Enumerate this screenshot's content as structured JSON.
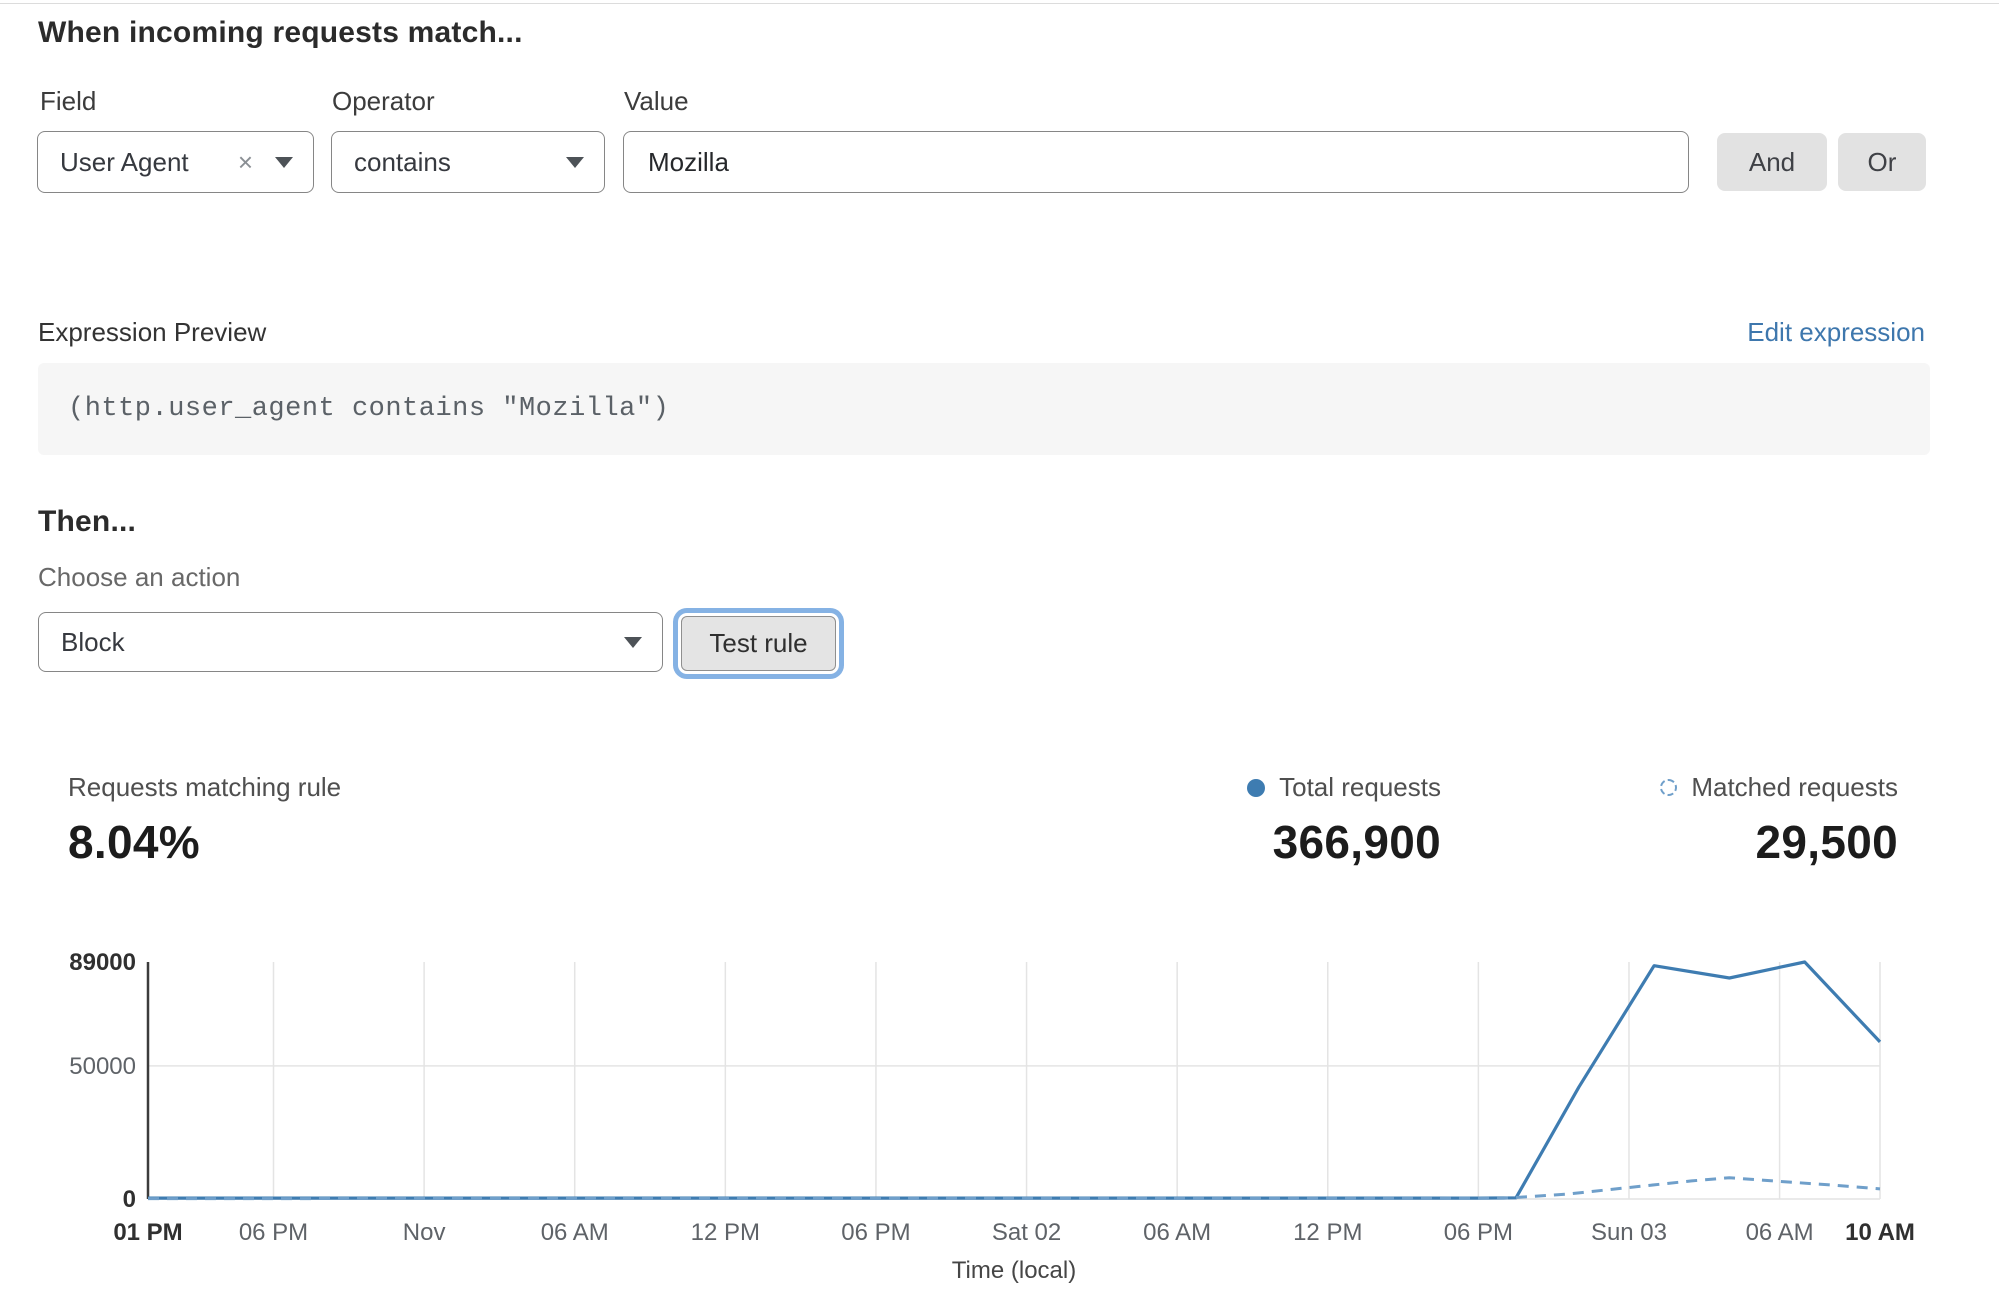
{
  "match_section": {
    "title": "When incoming requests match...",
    "field": {
      "label": "Field",
      "value": "User Agent"
    },
    "operator": {
      "label": "Operator",
      "value": "contains"
    },
    "value": {
      "label": "Value",
      "value": "Mozilla"
    },
    "and_label": "And",
    "or_label": "Or"
  },
  "expression": {
    "label": "Expression Preview",
    "edit_link": "Edit expression",
    "code": "(http.user_agent contains \"Mozilla\")"
  },
  "then_section": {
    "title": "Then...",
    "action_label": "Choose an action",
    "action_value": "Block",
    "test_button": "Test rule"
  },
  "stats": {
    "matching": {
      "label": "Requests matching rule",
      "value": "8.04%"
    },
    "total": {
      "label": "Total requests",
      "value": "366,900"
    },
    "matched": {
      "label": "Matched requests",
      "value": "29,500"
    }
  },
  "colors": {
    "solid_line": "#3e7cb1",
    "dashed_line": "#6f9fca",
    "link_blue": "#3e77ad",
    "grid": "#e4e4e4",
    "axis": "#3c3c3c"
  },
  "chart_data": {
    "type": "line",
    "title": "",
    "xlabel": "Time (local)",
    "ylabel": "",
    "ylim": [
      0,
      89000
    ],
    "grid": "on",
    "legend_position": "above-right",
    "yticks": [
      {
        "v": 0,
        "label": "0",
        "bold": true
      },
      {
        "v": 50000,
        "label": "50000",
        "bold": false
      },
      {
        "v": 89000,
        "label": "89000",
        "bold": true
      }
    ],
    "xticks": [
      {
        "h": 0,
        "label": "01 PM",
        "bold": true
      },
      {
        "h": 5,
        "label": "06 PM",
        "bold": false
      },
      {
        "h": 11,
        "label": "Nov",
        "bold": false
      },
      {
        "h": 17,
        "label": "06 AM",
        "bold": false
      },
      {
        "h": 23,
        "label": "12 PM",
        "bold": false
      },
      {
        "h": 29,
        "label": "06 PM",
        "bold": false
      },
      {
        "h": 35,
        "label": "Sat 02",
        "bold": false
      },
      {
        "h": 41,
        "label": "06 AM",
        "bold": false
      },
      {
        "h": 47,
        "label": "12 PM",
        "bold": false
      },
      {
        "h": 53,
        "label": "06 PM",
        "bold": false
      },
      {
        "h": 59,
        "label": "Sun 03",
        "bold": false
      },
      {
        "h": 65,
        "label": "06 AM",
        "bold": false
      },
      {
        "h": 69,
        "label": "10 AM",
        "bold": true
      }
    ],
    "x_span_hours": 69,
    "series": [
      {
        "name": "Total requests",
        "style": "solid",
        "color": "#3e7cb1",
        "points": [
          [
            0,
            350
          ],
          [
            6,
            350
          ],
          [
            12,
            350
          ],
          [
            18,
            350
          ],
          [
            24,
            350
          ],
          [
            30,
            350
          ],
          [
            36,
            350
          ],
          [
            42,
            350
          ],
          [
            48,
            350
          ],
          [
            53,
            350
          ],
          [
            54.5,
            450
          ],
          [
            57,
            42000
          ],
          [
            60,
            87600
          ],
          [
            63,
            83000
          ],
          [
            66,
            89000
          ],
          [
            69,
            59000
          ]
        ]
      },
      {
        "name": "Matched requests",
        "style": "dashed",
        "color": "#6f9fca",
        "points": [
          [
            0,
            150
          ],
          [
            54,
            250
          ],
          [
            56.5,
            1800
          ],
          [
            59,
            4300
          ],
          [
            61.5,
            6800
          ],
          [
            63,
            8000
          ],
          [
            65,
            6600
          ],
          [
            67,
            5300
          ],
          [
            69,
            3800
          ]
        ]
      }
    ]
  }
}
